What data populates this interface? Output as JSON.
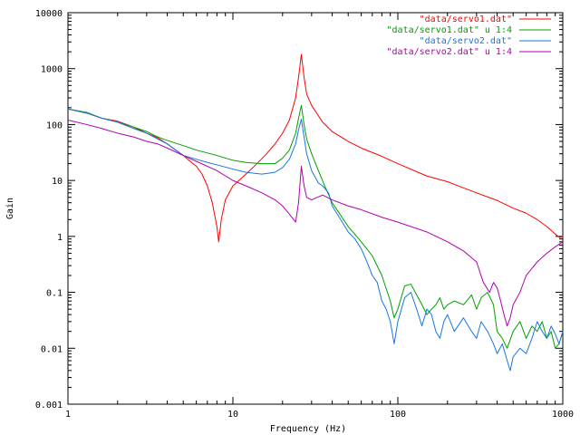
{
  "chart_data": {
    "type": "line",
    "title": "",
    "xlabel": "Frequency (Hz)",
    "ylabel": "Gain",
    "x_scale": "log",
    "y_scale": "log",
    "xlim": [
      1,
      1000
    ],
    "ylim": [
      0.001,
      10000
    ],
    "x_ticks": [
      1,
      10,
      100,
      1000
    ],
    "x_tick_labels": [
      "1",
      "10",
      "100",
      "1000"
    ],
    "y_ticks": [
      0.001,
      0.01,
      0.1,
      1,
      10,
      100,
      1000,
      10000
    ],
    "y_tick_labels": [
      "0.001",
      "0.01",
      "0.1",
      "1",
      "10",
      "100",
      "1000",
      "10000"
    ],
    "grid": false,
    "legend_position": "top-right",
    "series": [
      {
        "name": "\"data/servo1.dat\"",
        "color": "#ff0000",
        "points": [
          [
            1,
            190
          ],
          [
            1.3,
            160
          ],
          [
            1.6,
            130
          ],
          [
            2,
            115
          ],
          [
            2.5,
            90
          ],
          [
            3,
            70
          ],
          [
            3.5,
            58
          ],
          [
            4,
            45
          ],
          [
            4.5,
            35
          ],
          [
            5,
            28
          ],
          [
            5.5,
            22
          ],
          [
            6,
            18
          ],
          [
            6.5,
            13
          ],
          [
            7,
            8
          ],
          [
            7.5,
            4
          ],
          [
            8,
            1.5
          ],
          [
            8.2,
            0.8
          ],
          [
            8.5,
            2
          ],
          [
            9,
            4.5
          ],
          [
            10,
            8
          ],
          [
            12,
            13
          ],
          [
            14,
            20
          ],
          [
            16,
            30
          ],
          [
            18,
            45
          ],
          [
            20,
            70
          ],
          [
            22,
            120
          ],
          [
            24,
            300
          ],
          [
            25,
            700
          ],
          [
            26,
            1800
          ],
          [
            27,
            700
          ],
          [
            28,
            350
          ],
          [
            30,
            220
          ],
          [
            35,
            110
          ],
          [
            40,
            75
          ],
          [
            50,
            50
          ],
          [
            60,
            38
          ],
          [
            80,
            27
          ],
          [
            100,
            20
          ],
          [
            150,
            12
          ],
          [
            200,
            9.5
          ],
          [
            300,
            6
          ],
          [
            400,
            4.4
          ],
          [
            500,
            3.2
          ],
          [
            600,
            2.6
          ],
          [
            700,
            2
          ],
          [
            800,
            1.5
          ],
          [
            900,
            1.1
          ],
          [
            960,
            0.95
          ],
          [
            1000,
            1
          ]
        ]
      },
      {
        "name": "\"data/servo1.dat\" u 1:4",
        "color": "#00a000",
        "points": [
          [
            1,
            190
          ],
          [
            1.3,
            165
          ],
          [
            1.6,
            130
          ],
          [
            2,
            110
          ],
          [
            2.5,
            90
          ],
          [
            3,
            75
          ],
          [
            3.5,
            60
          ],
          [
            4,
            52
          ],
          [
            5,
            42
          ],
          [
            6,
            35
          ],
          [
            8,
            28
          ],
          [
            10,
            23
          ],
          [
            12,
            21
          ],
          [
            15,
            20
          ],
          [
            18,
            20
          ],
          [
            20,
            25
          ],
          [
            22,
            35
          ],
          [
            24,
            70
          ],
          [
            25,
            130
          ],
          [
            26,
            220
          ],
          [
            27,
            100
          ],
          [
            28,
            55
          ],
          [
            30,
            30
          ],
          [
            33,
            15
          ],
          [
            36,
            8
          ],
          [
            40,
            4
          ],
          [
            50,
            1.5
          ],
          [
            60,
            0.8
          ],
          [
            70,
            0.45
          ],
          [
            80,
            0.2
          ],
          [
            90,
            0.07
          ],
          [
            95,
            0.035
          ],
          [
            100,
            0.05
          ],
          [
            110,
            0.13
          ],
          [
            120,
            0.14
          ],
          [
            130,
            0.09
          ],
          [
            140,
            0.06
          ],
          [
            150,
            0.04
          ],
          [
            160,
            0.05
          ],
          [
            170,
            0.06
          ],
          [
            180,
            0.08
          ],
          [
            190,
            0.05
          ],
          [
            200,
            0.06
          ],
          [
            220,
            0.07
          ],
          [
            250,
            0.06
          ],
          [
            280,
            0.09
          ],
          [
            300,
            0.05
          ],
          [
            320,
            0.08
          ],
          [
            350,
            0.1
          ],
          [
            380,
            0.06
          ],
          [
            400,
            0.02
          ],
          [
            430,
            0.015
          ],
          [
            460,
            0.01
          ],
          [
            500,
            0.02
          ],
          [
            550,
            0.03
          ],
          [
            600,
            0.015
          ],
          [
            650,
            0.025
          ],
          [
            700,
            0.02
          ],
          [
            750,
            0.03
          ],
          [
            800,
            0.015
          ],
          [
            850,
            0.02
          ],
          [
            900,
            0.01
          ],
          [
            950,
            0.012
          ],
          [
            1000,
            0.02
          ]
        ]
      },
      {
        "name": "\"data/servo2.dat\"",
        "color": "#1a75e6",
        "points": [
          [
            1,
            190
          ],
          [
            1.3,
            160
          ],
          [
            1.6,
            130
          ],
          [
            2,
            110
          ],
          [
            2.5,
            85
          ],
          [
            3,
            70
          ],
          [
            3.5,
            55
          ],
          [
            4,
            45
          ],
          [
            4.5,
            35
          ],
          [
            5,
            28
          ],
          [
            6,
            24
          ],
          [
            7,
            21
          ],
          [
            8,
            19
          ],
          [
            10,
            16
          ],
          [
            12,
            14
          ],
          [
            15,
            13
          ],
          [
            18,
            14
          ],
          [
            20,
            17
          ],
          [
            22,
            24
          ],
          [
            24,
            45
          ],
          [
            25,
            80
          ],
          [
            26,
            125
          ],
          [
            27,
            60
          ],
          [
            28,
            30
          ],
          [
            30,
            15
          ],
          [
            33,
            9
          ],
          [
            35,
            8
          ],
          [
            38,
            6
          ],
          [
            40,
            3.5
          ],
          [
            45,
            2
          ],
          [
            50,
            1.2
          ],
          [
            55,
            0.9
          ],
          [
            60,
            0.6
          ],
          [
            65,
            0.35
          ],
          [
            70,
            0.2
          ],
          [
            75,
            0.15
          ],
          [
            80,
            0.07
          ],
          [
            85,
            0.05
          ],
          [
            90,
            0.03
          ],
          [
            95,
            0.012
          ],
          [
            100,
            0.03
          ],
          [
            110,
            0.08
          ],
          [
            120,
            0.1
          ],
          [
            130,
            0.05
          ],
          [
            140,
            0.025
          ],
          [
            150,
            0.05
          ],
          [
            160,
            0.04
          ],
          [
            170,
            0.02
          ],
          [
            180,
            0.015
          ],
          [
            190,
            0.03
          ],
          [
            200,
            0.04
          ],
          [
            220,
            0.02
          ],
          [
            250,
            0.035
          ],
          [
            280,
            0.02
          ],
          [
            300,
            0.015
          ],
          [
            320,
            0.03
          ],
          [
            350,
            0.02
          ],
          [
            380,
            0.012
          ],
          [
            400,
            0.008
          ],
          [
            430,
            0.012
          ],
          [
            460,
            0.006
          ],
          [
            480,
            0.004
          ],
          [
            500,
            0.007
          ],
          [
            550,
            0.01
          ],
          [
            600,
            0.008
          ],
          [
            650,
            0.015
          ],
          [
            700,
            0.03
          ],
          [
            750,
            0.02
          ],
          [
            800,
            0.015
          ],
          [
            850,
            0.025
          ],
          [
            900,
            0.018
          ],
          [
            950,
            0.012
          ],
          [
            1000,
            0.02
          ]
        ]
      },
      {
        "name": "\"data/servo2.dat\" u 1:4",
        "color": "#b000b0",
        "points": [
          [
            1,
            120
          ],
          [
            1.3,
            100
          ],
          [
            1.6,
            85
          ],
          [
            2,
            70
          ],
          [
            2.5,
            60
          ],
          [
            3,
            50
          ],
          [
            3.5,
            45
          ],
          [
            4,
            38
          ],
          [
            5,
            28
          ],
          [
            6,
            22
          ],
          [
            8,
            15
          ],
          [
            10,
            10
          ],
          [
            12,
            8
          ],
          [
            15,
            6
          ],
          [
            18,
            4.5
          ],
          [
            20,
            3.5
          ],
          [
            22,
            2.5
          ],
          [
            24,
            1.8
          ],
          [
            25,
            4
          ],
          [
            26,
            18
          ],
          [
            27,
            8
          ],
          [
            28,
            5
          ],
          [
            30,
            4.5
          ],
          [
            35,
            5.5
          ],
          [
            40,
            4.5
          ],
          [
            50,
            3.5
          ],
          [
            60,
            3
          ],
          [
            80,
            2.2
          ],
          [
            100,
            1.8
          ],
          [
            150,
            1.2
          ],
          [
            200,
            0.8
          ],
          [
            250,
            0.55
          ],
          [
            300,
            0.35
          ],
          [
            330,
            0.15
          ],
          [
            360,
            0.1
          ],
          [
            380,
            0.15
          ],
          [
            400,
            0.12
          ],
          [
            420,
            0.07
          ],
          [
            440,
            0.04
          ],
          [
            460,
            0.025
          ],
          [
            480,
            0.035
          ],
          [
            500,
            0.06
          ],
          [
            550,
            0.1
          ],
          [
            600,
            0.2
          ],
          [
            700,
            0.35
          ],
          [
            800,
            0.5
          ],
          [
            900,
            0.65
          ],
          [
            1000,
            0.8
          ]
        ]
      }
    ]
  }
}
